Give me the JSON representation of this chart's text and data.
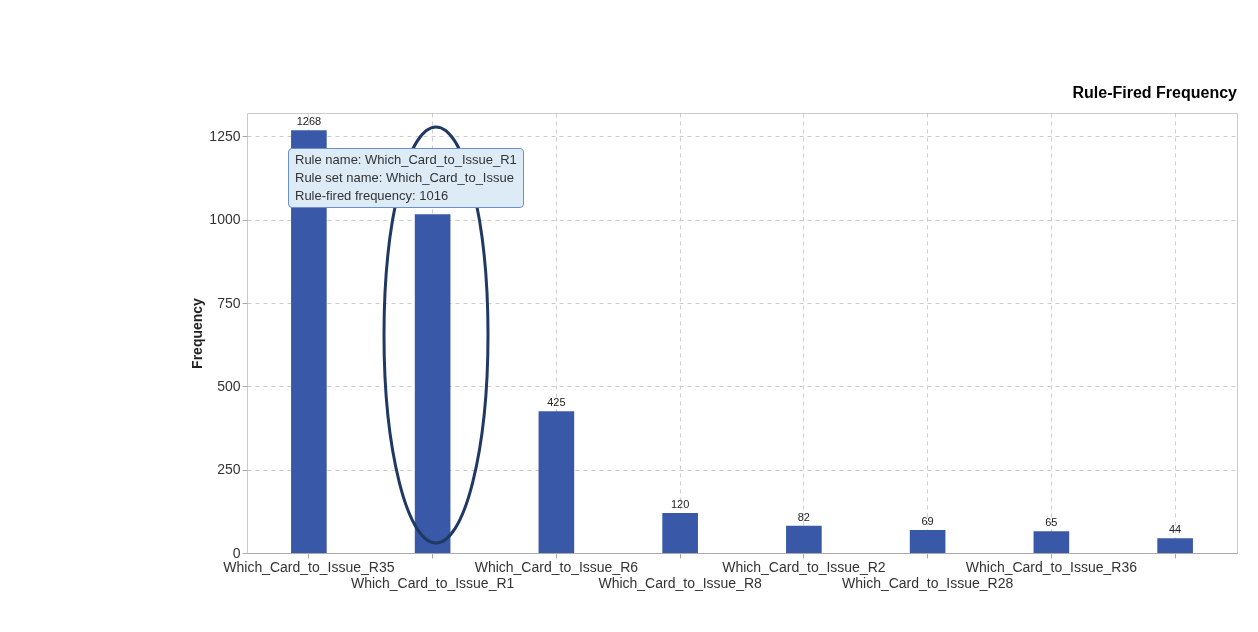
{
  "chart_data": {
    "type": "bar",
    "title": "Rule-Fired Frequency",
    "ylabel": "Frequency",
    "categories": [
      "Which_Card_to_Issue_R35",
      "Which_Card_to_Issue_R1",
      "Which_Card_to_Issue_R6",
      "Which_Card_to_Issue_R8",
      "Which_Card_to_Issue_R2",
      "Which_Card_to_Issue_R28",
      "Which_Card_to_Issue_R36",
      null
    ],
    "values": [
      1268,
      1016,
      425,
      120,
      82,
      69,
      65,
      44
    ],
    "color": "#3a58a8",
    "ylim": [
      0,
      1320
    ],
    "yticks": [
      0,
      250,
      500,
      750,
      1000,
      1250
    ],
    "grid": true,
    "value_labels": [
      "1268",
      null,
      "425",
      "120",
      "82",
      "69",
      "65",
      "44"
    ],
    "annotations": [
      "Rule name: Which_Card_to_Issue_R1",
      "Rule set name: Which_Card_to_Issue",
      "Rule-fired frequency: 1016"
    ]
  }
}
